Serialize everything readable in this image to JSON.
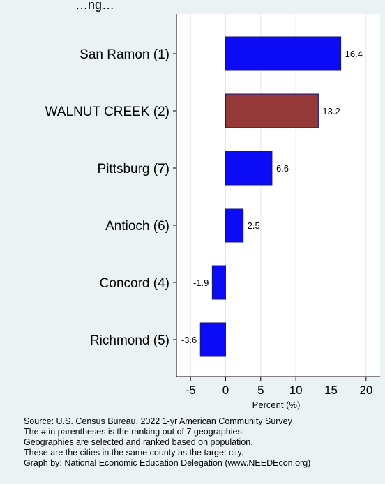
{
  "chart_data": {
    "type": "bar",
    "orientation": "horizontal",
    "title": "…ng…",
    "categories": [
      "San Ramon",
      "WALNUT CREEK",
      "Pittsburg",
      "Antioch",
      "Concord",
      "Richmond"
    ],
    "ranks": [
      "(1)",
      "(2)",
      "(7)",
      "(6)",
      "(4)",
      "(5)"
    ],
    "values": [
      16.4,
      13.2,
      6.6,
      2.5,
      -1.9,
      -3.6
    ],
    "value_labels": [
      "16.4",
      "13.2",
      "6.6",
      "2.5",
      "-1.9",
      "-3.6"
    ],
    "highlight": "WALNUT CREEK",
    "colors": {
      "default": "#0b0bf5",
      "highlight": "#943838",
      "edge": "#15157a",
      "background": "#eaf2f3",
      "plot": "#ffffff",
      "grid": "#e6e6e6"
    },
    "xlabel": "Percent (%)",
    "xlim": [
      -7,
      22
    ],
    "xticks": [
      -5,
      0,
      5,
      10,
      15,
      20
    ],
    "grid": true
  },
  "notes": [
    "Source: U.S. Census Bureau, 2022 1-yr American Community Survey",
    "The # in parentheses is the ranking out of 7 geographies.",
    "Geographies are selected and ranked based on population.",
    "These are the cities in the same county as the target city.",
    "Graph by: National Economic Education Delegation (www.NEEDEcon.org)"
  ]
}
